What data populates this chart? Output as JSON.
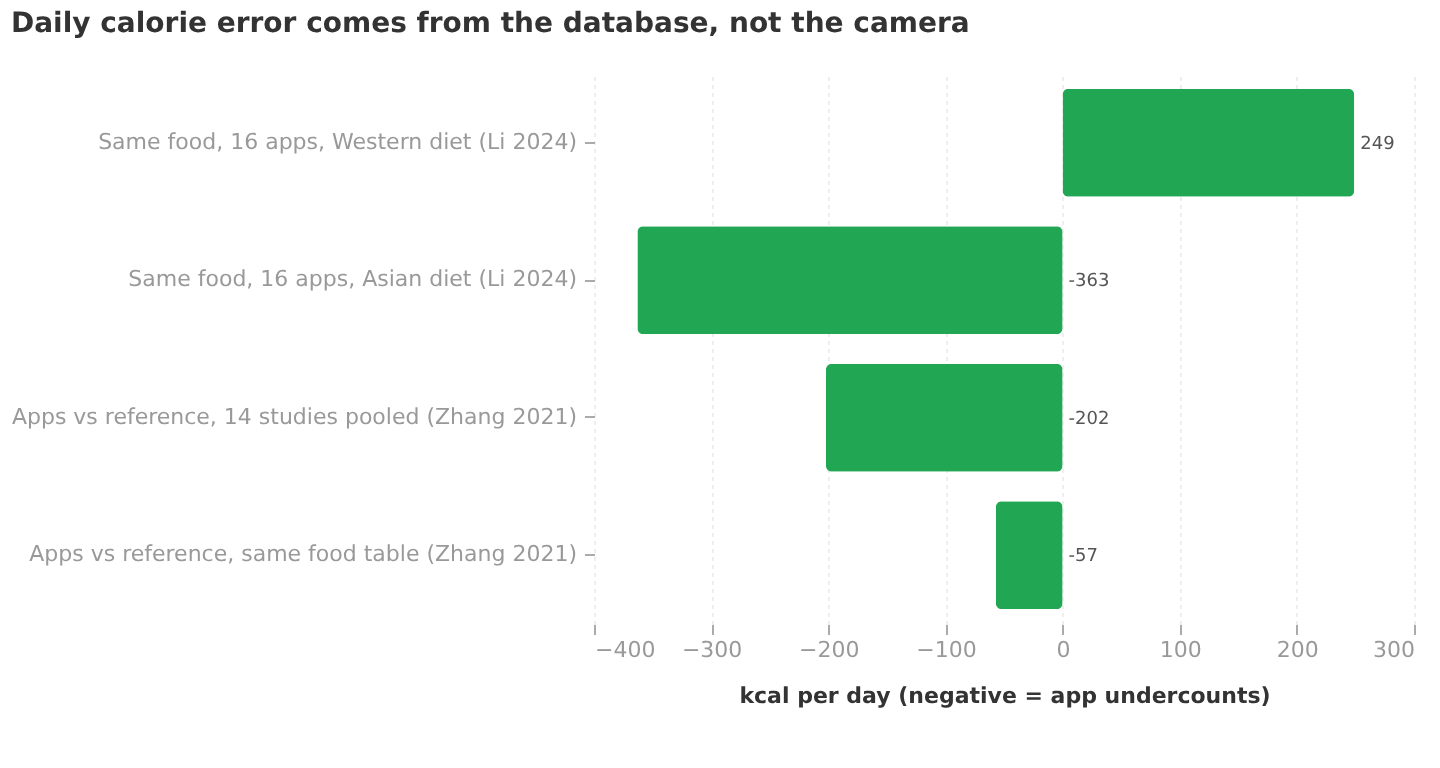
{
  "chart_data": {
    "type": "bar",
    "orientation": "horizontal",
    "title": "Daily calorie error comes from the database, not the camera",
    "xlabel": "kcal per day (negative = app undercounts)",
    "categories": [
      "Same food, 16 apps, Western diet (Li 2024)",
      "Same food, 16 apps, Asian diet (Li 2024)",
      "Apps vs reference, 14 studies pooled (Zhang 2021)",
      "Apps vs reference, same food table (Zhang 2021)"
    ],
    "values": [
      249,
      -363,
      -202,
      -57
    ],
    "color": "#21a753",
    "xlim": [
      -400,
      300
    ],
    "xticks": [
      -400,
      -300,
      -200,
      -100,
      0,
      100,
      200,
      300
    ],
    "grid": "x",
    "data_labels": true
  }
}
